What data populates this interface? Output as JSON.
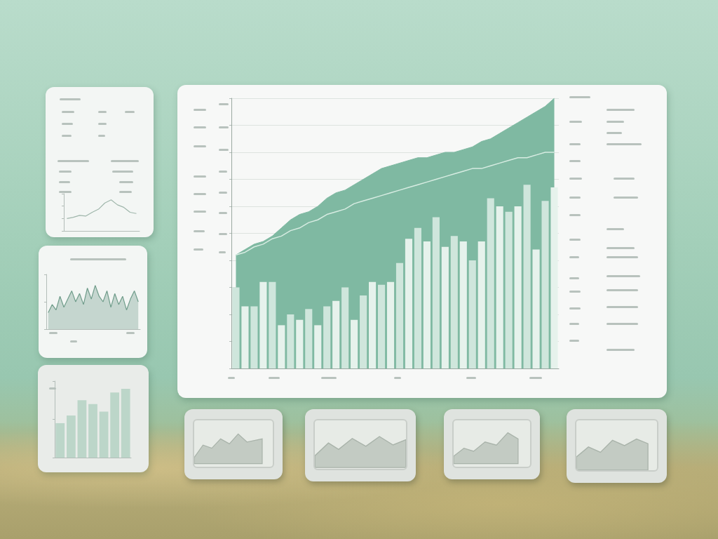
{
  "chart_data": [
    {
      "type": "bar",
      "categories": [
        null,
        null,
        null,
        null,
        null,
        null,
        null,
        null,
        null,
        null,
        null,
        null,
        null,
        null,
        null,
        null,
        null,
        null,
        null,
        null,
        null,
        null,
        null,
        null,
        null,
        null,
        null,
        null,
        null,
        null,
        null,
        null,
        null,
        null,
        null,
        null
      ],
      "series": [
        {
          "type": "area",
          "color": "#7fb9a2",
          "marker": "none",
          "values": [
            42,
            44,
            46,
            47,
            49,
            52,
            55,
            57,
            58,
            60,
            63,
            65,
            66,
            68,
            70,
            72,
            74,
            75,
            76,
            77,
            78,
            78,
            79,
            80,
            80,
            81,
            82,
            84,
            85,
            87,
            89,
            91,
            93,
            95,
            97,
            100
          ]
        },
        {
          "type": "bar",
          "colors": [
            "#cfe6dc",
            "#e6f2ec",
            "#cfe6dc",
            "#e6f2ec",
            "#cfe6dc",
            "#e6f2ec",
            "#cfe6dc",
            "#e6f2ec",
            "#cfe6dc",
            "#e6f2ec",
            "#cfe6dc",
            "#e6f2ec",
            "#cfe6dc",
            "#e6f2ec",
            "#cfe6dc",
            "#e6f2ec",
            "#cfe6dc",
            "#e6f2ec",
            "#cfe6dc",
            "#e6f2ec",
            "#cfe6dc",
            "#e6f2ec",
            "#cfe6dc",
            "#e6f2ec",
            "#cfe6dc",
            "#e6f2ec",
            "#cfe6dc",
            "#e6f2ec",
            "#cfe6dc",
            "#e6f2ec",
            "#cfe6dc",
            "#e6f2ec",
            "#cfe6dc",
            "#e6f2ec",
            "#cfe6dc",
            "#e6f2ec"
          ],
          "values": [
            30,
            23,
            23,
            32,
            32,
            16,
            20,
            18,
            22,
            16,
            23,
            25,
            30,
            18,
            27,
            32,
            31,
            32,
            39,
            48,
            52,
            47,
            56,
            45,
            49,
            47,
            40,
            47,
            63,
            60,
            58,
            60,
            68,
            44,
            62,
            67
          ]
        },
        {
          "type": "line",
          "color": "#d7ece2",
          "marker": "none",
          "values": [
            42,
            43,
            45,
            46,
            48,
            49,
            51,
            52,
            54,
            55,
            57,
            58,
            59,
            61,
            62,
            63,
            64,
            65,
            66,
            67,
            68,
            69,
            70,
            71,
            72,
            73,
            74,
            74,
            75,
            76,
            77,
            78,
            78,
            79,
            80,
            80
          ]
        }
      ],
      "ylim": [
        0,
        100
      ],
      "yticks": [
        0,
        10,
        20,
        30,
        40,
        50,
        60,
        70,
        80,
        90,
        100
      ],
      "grid": true,
      "tick_labels": false
    },
    {
      "type": "line",
      "categories": [
        null,
        null,
        null,
        null,
        null,
        null,
        null,
        null,
        null,
        null,
        null,
        null
      ],
      "values": [
        20,
        22,
        25,
        24,
        30,
        35,
        45,
        50,
        42,
        38,
        30,
        28
      ],
      "color": "#9fb6ab",
      "marker": "none",
      "ylim": [
        0,
        60
      ],
      "yticks": [
        0,
        20,
        40,
        60
      ],
      "grid": false,
      "tick_labels": false
    },
    {
      "type": "area",
      "categories": [
        null,
        null,
        null,
        null,
        null,
        null,
        null,
        null,
        null,
        null,
        null,
        null,
        null,
        null,
        null,
        null,
        null,
        null,
        null,
        null,
        null,
        null,
        null,
        null
      ],
      "values": [
        30,
        45,
        35,
        60,
        40,
        55,
        70,
        50,
        65,
        45,
        75,
        55,
        80,
        60,
        50,
        70,
        40,
        65,
        45,
        60,
        35,
        55,
        70,
        50
      ],
      "color": "#6f9c8a",
      "marker": "none",
      "ylim": [
        0,
        100
      ],
      "yticks": [
        0,
        50,
        100
      ],
      "grid": false,
      "tick_labels": false
    },
    {
      "type": "bar",
      "categories": [
        null,
        null,
        null,
        null,
        null,
        null,
        null
      ],
      "values": [
        45,
        55,
        75,
        70,
        60,
        85,
        90
      ],
      "color": "#bcd6c9",
      "ylim": [
        0,
        100
      ],
      "yticks": [
        0,
        50,
        100
      ],
      "grid": false,
      "tick_labels": false
    }
  ]
}
